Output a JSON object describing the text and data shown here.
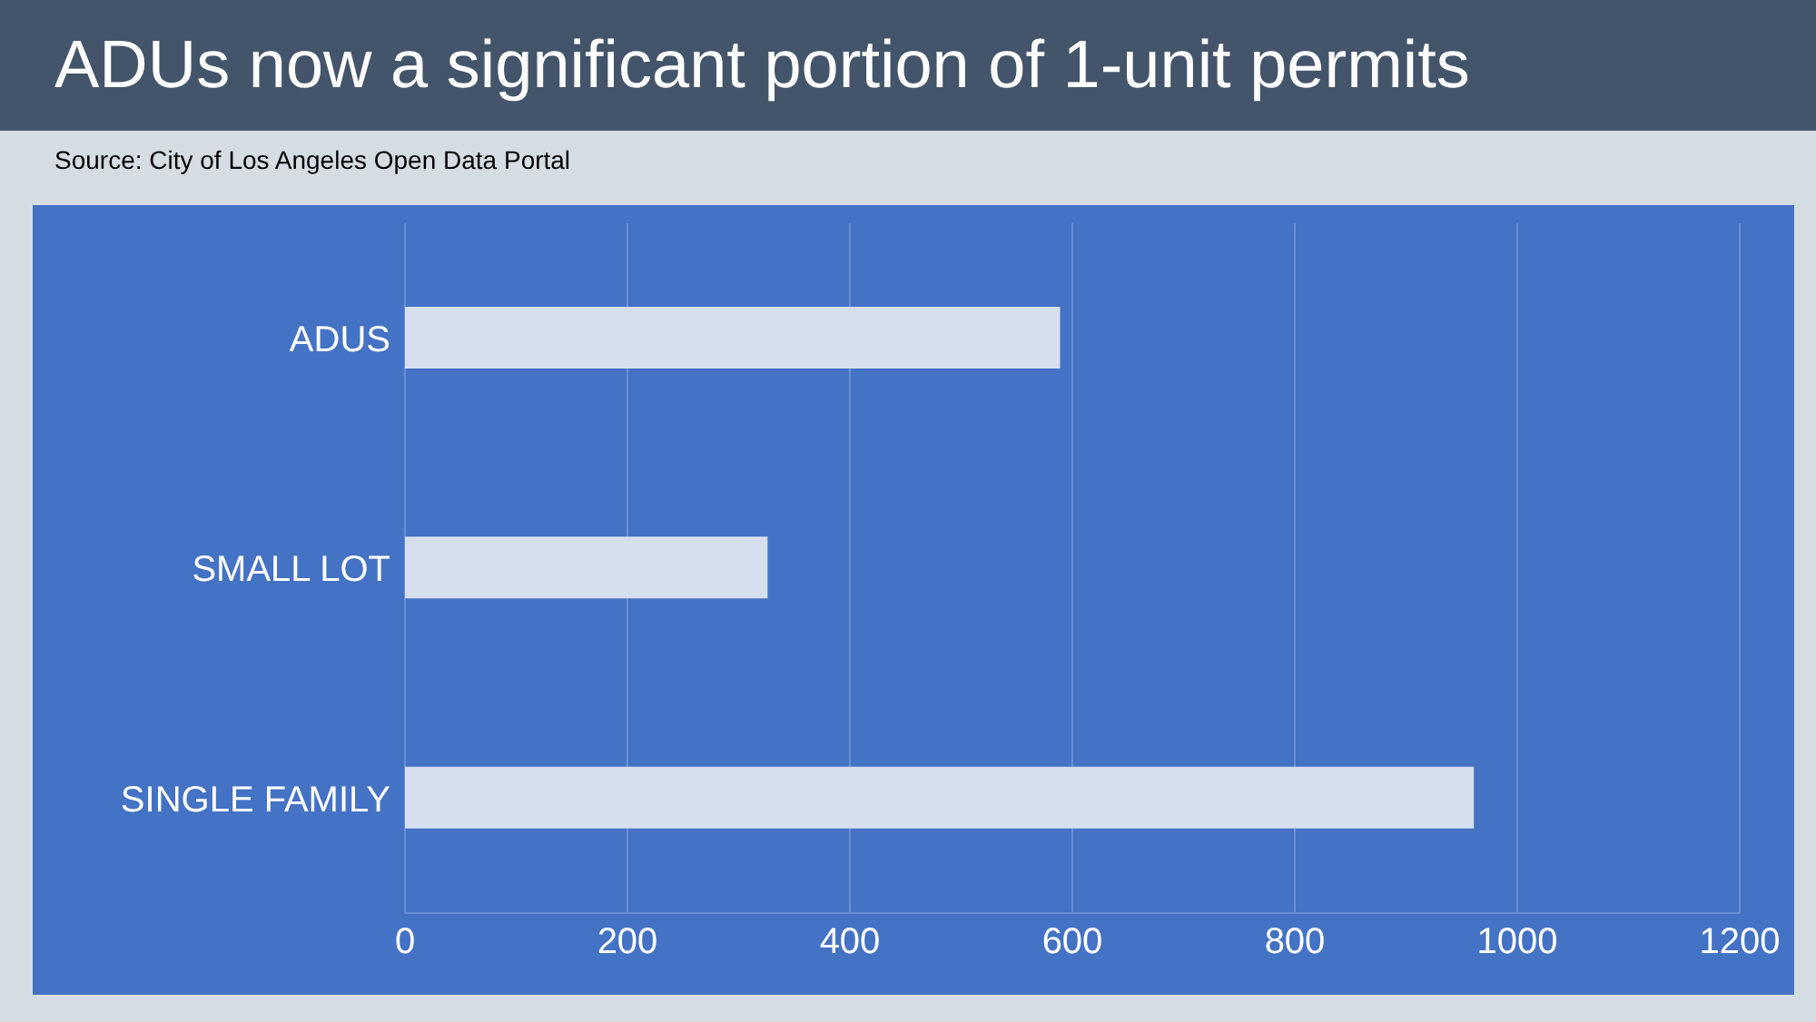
{
  "chart_data": {
    "type": "bar",
    "orientation": "horizontal",
    "title": "ADUs now a significant portion of 1-unit permits",
    "annotations": [
      "Source: City of Los Angeles Open Data Portal"
    ],
    "categories": [
      "ADUS",
      "SMALL LOT",
      "SINGLE FAMILY"
    ],
    "values": [
      589,
      326,
      961
    ],
    "color": "#d6dfee",
    "xlim": [
      0,
      1200
    ],
    "xticks": [
      0,
      200,
      400,
      600,
      800,
      1000,
      1200
    ],
    "grid": "x",
    "legend": false
  }
}
